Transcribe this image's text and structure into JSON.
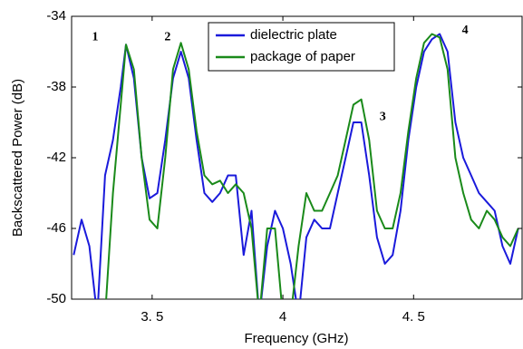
{
  "chart_data": {
    "type": "line",
    "xlabel": "Frequency (GHz)",
    "ylabel": "Backscattered Power (dB)",
    "x": [
      3.2,
      3.23,
      3.26,
      3.29,
      3.32,
      3.35,
      3.38,
      3.4,
      3.43,
      3.46,
      3.49,
      3.52,
      3.55,
      3.58,
      3.61,
      3.64,
      3.67,
      3.7,
      3.73,
      3.76,
      3.79,
      3.82,
      3.85,
      3.88,
      3.91,
      3.94,
      3.97,
      4.0,
      4.03,
      4.06,
      4.09,
      4.12,
      4.15,
      4.18,
      4.21,
      4.24,
      4.27,
      4.3,
      4.33,
      4.36,
      4.39,
      4.42,
      4.45,
      4.48,
      4.51,
      4.54,
      4.57,
      4.6,
      4.63,
      4.66,
      4.69,
      4.72,
      4.75,
      4.78,
      4.81,
      4.84,
      4.87,
      4.9
    ],
    "series": [
      {
        "name": "dielectric plate",
        "color": "#1a1adb",
        "values": [
          -47.5,
          -45.5,
          -47,
          -51,
          -43,
          -41,
          -38,
          -35.6,
          -37.5,
          -42,
          -44.3,
          -44,
          -41,
          -37.5,
          -36,
          -37.5,
          -41,
          -44,
          -44.5,
          -44,
          -43,
          -43,
          -47.5,
          -45,
          -51,
          -47,
          -45,
          -46,
          -48,
          -51,
          -46.5,
          -45.5,
          -46,
          -46,
          -44,
          -42,
          -40,
          -40,
          -43,
          -46.5,
          -48,
          -47.5,
          -45,
          -41,
          -38,
          -36,
          -35.3,
          -35,
          -36,
          -40,
          -42,
          -43,
          -44,
          -44.5,
          -45,
          -47,
          -48,
          -46
        ]
      },
      {
        "name": "package of paper",
        "color": "#1a8a1a",
        "values": [
          -51,
          -51,
          -51,
          -51,
          -51,
          -44,
          -39,
          -35.6,
          -37,
          -42,
          -45.5,
          -46,
          -42,
          -37,
          -35.5,
          -37,
          -40.5,
          -43,
          -43.5,
          -43.3,
          -44,
          -43.5,
          -44,
          -46,
          -51,
          -46,
          -46,
          -51,
          -51,
          -47,
          -44,
          -45,
          -45,
          -44,
          -43,
          -41,
          -39,
          -38.7,
          -41,
          -45,
          -46,
          -46,
          -44,
          -40.5,
          -37.5,
          -35.5,
          -35,
          -35.2,
          -37,
          -42,
          -44,
          -45.5,
          -46,
          -45,
          -45.5,
          -46.5,
          -47,
          -46
        ]
      }
    ],
    "xlim": [
      3.192,
      4.915
    ],
    "ylim": [
      -50,
      -34
    ],
    "xticks": [
      {
        "value": 3.5,
        "label": "3. 5"
      },
      4,
      {
        "value": 4.5,
        "label": "4. 5"
      }
    ],
    "yticks": [
      -34,
      -38,
      -42,
      -46,
      -50
    ],
    "annotations": [
      {
        "text": "1",
        "x": 3.282,
        "y": -35.2
      },
      {
        "text": "2",
        "x": 3.559,
        "y": -35.2
      },
      {
        "text": "3",
        "x": 4.382,
        "y": -39.7
      },
      {
        "text": "4",
        "x": 4.697,
        "y": -34.8
      }
    ],
    "legend": "upper right"
  }
}
